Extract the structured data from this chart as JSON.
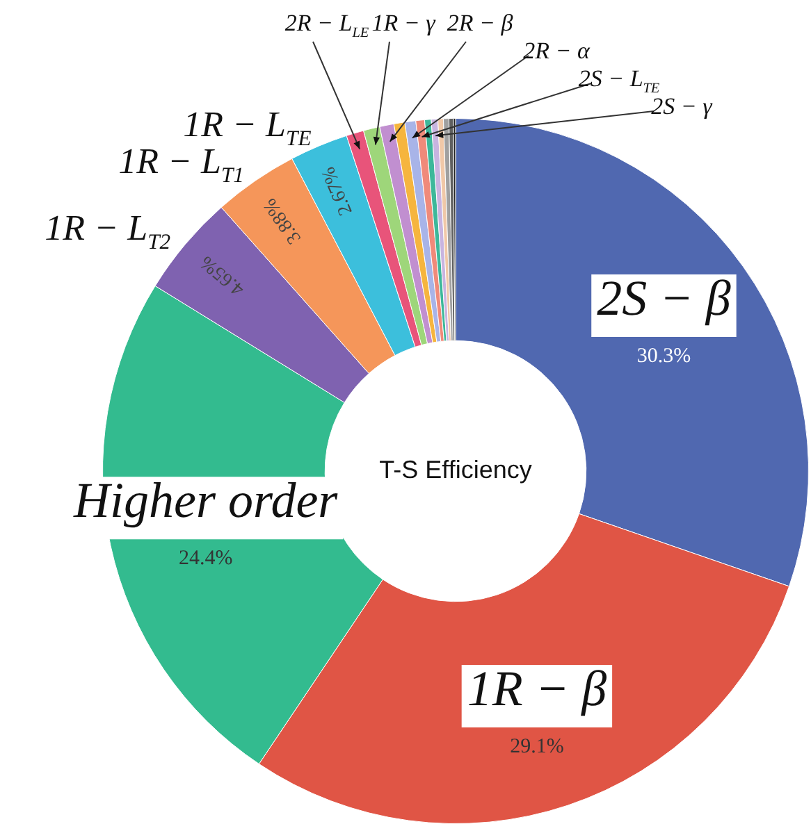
{
  "chart_data": {
    "type": "donut",
    "title": "T-S Efficiency",
    "categories": [
      "2S − β",
      "1R − β",
      "Higher order",
      "1R − L$_{T2}$",
      "1R − L$_{T1}$",
      "1R − L$_{TE}$",
      "2R − L$_{LE}$",
      "1R − γ",
      "2R − β",
      null,
      "2R − α",
      "2S − L$_{TE}$",
      null,
      "2S − γ",
      null,
      null,
      null,
      null
    ],
    "values": [
      30.3,
      29.1,
      24.4,
      4.65,
      3.88,
      2.67,
      0.8,
      0.75,
      0.65,
      0.5,
      0.5,
      0.4,
      0.3,
      0.3,
      0.25,
      0.25,
      0.2,
      0.1
    ],
    "colors": [
      "#5068b0",
      "#e05545",
      "#33bb8f",
      "#7f62b0",
      "#f5965a",
      "#3cbfdc",
      "#e8547a",
      "#9ed67a",
      "#c18fd0",
      "#f6b53e",
      "#a8b4e8",
      "#f08a7a",
      "#3db89a",
      "#c8b4e0",
      "#f0c8a8",
      "#a0a0a0",
      "#606060",
      "#202020"
    ],
    "value_labels": [
      "30.3%",
      "29.1%",
      "24.4%",
      "4.65%",
      "3.88%",
      "2.67%",
      null,
      null,
      null,
      null,
      null,
      null,
      null,
      null,
      null,
      null,
      null,
      null
    ],
    "legend": false
  }
}
